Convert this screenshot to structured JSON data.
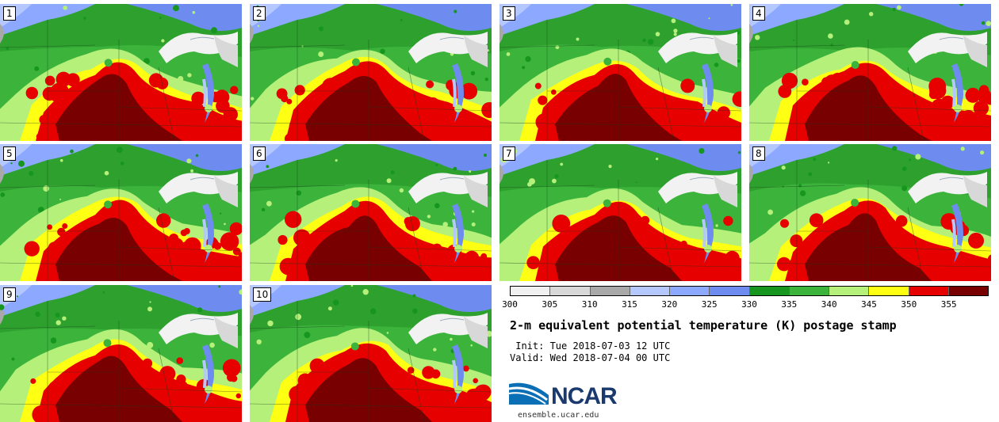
{
  "panels": [
    {
      "label": "1"
    },
    {
      "label": "2"
    },
    {
      "label": "3"
    },
    {
      "label": "4"
    },
    {
      "label": "5"
    },
    {
      "label": "6"
    },
    {
      "label": "7"
    },
    {
      "label": "8"
    },
    {
      "label": "9"
    },
    {
      "label": "10"
    }
  ],
  "colorbar": {
    "ticks": [
      "300",
      "305",
      "310",
      "315",
      "320",
      "325",
      "330",
      "335",
      "340",
      "345",
      "350",
      "355"
    ],
    "colors": [
      "#f0f0f0",
      "#d8d8d8",
      "#a8a8a8",
      "#b4c8ff",
      "#8ca8ff",
      "#6e8cf0",
      "#16961e",
      "#3cb43c",
      "#b4f07a",
      "#ffff14",
      "#e60000",
      "#780000"
    ]
  },
  "title": "2-m equivalent potential temperature (K) postage stamp",
  "init": " Init: Tue 2018-07-03 12 UTC",
  "valid": "Valid: Wed 2018-07-04 00 UTC",
  "logo": {
    "text": "NCAR",
    "site": "ensemble.ucar.edu"
  }
}
